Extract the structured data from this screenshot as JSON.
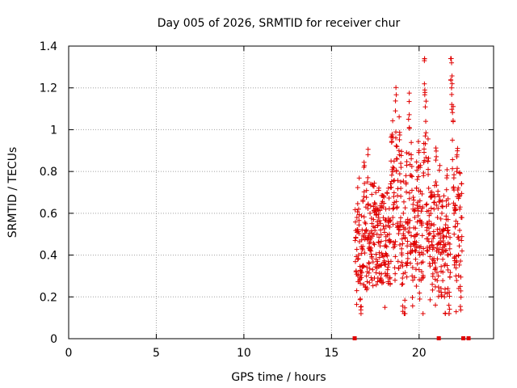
{
  "chart_data": {
    "type": "scatter",
    "title": "Day 005 of 2026, SRMTID for receiver chur",
    "xlabel": "GPS time / hours",
    "ylabel": "SRMTID / TECUs",
    "xlim": [
      0,
      24.25
    ],
    "ylim": [
      0,
      1.4
    ],
    "xticks": [
      0,
      5,
      10,
      15,
      20
    ],
    "yticks": [
      0,
      0.2,
      0.4,
      0.6,
      0.8,
      1,
      1.2,
      1.4
    ],
    "xtick_labels": [
      "0",
      "5",
      "10",
      "15",
      "20"
    ],
    "ytick_labels": [
      "0",
      "0.2",
      "0.4",
      "0.6",
      "0.8",
      "1",
      "1.2",
      "1.4"
    ],
    "grid": true,
    "marker": "+",
    "color": "#e00000",
    "data_range": [
      16.3,
      22.8
    ],
    "series": [
      {
        "name": "SRMTID",
        "points": [
          [
            16.35,
            0.47
          ],
          [
            16.4,
            0.32
          ],
          [
            16.45,
            0.58
          ],
          [
            16.5,
            0.38
          ],
          [
            16.55,
            0.62
          ],
          [
            16.6,
            0.28
          ],
          [
            16.65,
            0.19
          ],
          [
            16.7,
            0.44
          ],
          [
            16.75,
            0.52
          ],
          [
            16.8,
            0.35
          ],
          [
            16.85,
            0.68
          ],
          [
            16.9,
            0.41
          ],
          [
            16.95,
            0.55
          ],
          [
            17.0,
            0.3
          ],
          [
            17.05,
            0.75
          ],
          [
            17.1,
            0.48
          ],
          [
            17.15,
            0.36
          ],
          [
            17.2,
            0.6
          ],
          [
            17.25,
            0.42
          ],
          [
            17.3,
            0.69
          ],
          [
            17.35,
            0.33
          ],
          [
            17.4,
            0.57
          ],
          [
            17.45,
            0.45
          ],
          [
            17.5,
            0.62
          ],
          [
            17.55,
            0.38
          ],
          [
            17.6,
            0.5
          ],
          [
            17.65,
            0.29
          ],
          [
            17.7,
            0.46
          ],
          [
            17.75,
            0.35
          ],
          [
            17.8,
            0.52
          ],
          [
            17.85,
            0.31
          ],
          [
            17.9,
            0.4
          ],
          [
            17.95,
            0.27
          ],
          [
            18.0,
            0.36
          ],
          [
            18.05,
            0.15
          ],
          [
            18.1,
            0.62
          ],
          [
            18.15,
            0.44
          ],
          [
            18.2,
            0.33
          ],
          [
            18.25,
            0.72
          ],
          [
            18.3,
            0.5
          ],
          [
            18.35,
            0.26
          ],
          [
            18.4,
            0.85
          ],
          [
            18.45,
            0.97
          ],
          [
            18.5,
            0.58
          ],
          [
            18.55,
            0.68
          ],
          [
            18.6,
            0.45
          ],
          [
            18.65,
            1.09
          ],
          [
            18.7,
            0.8
          ],
          [
            18.75,
            0.63
          ],
          [
            18.8,
            0.37
          ],
          [
            18.85,
            0.9
          ],
          [
            18.9,
            0.52
          ],
          [
            18.95,
            0.75
          ],
          [
            19.0,
            0.43
          ],
          [
            19.05,
            0.29
          ],
          [
            19.1,
            0.6
          ],
          [
            19.15,
            0.12
          ],
          [
            19.2,
            0.48
          ],
          [
            19.25,
            0.78
          ],
          [
            19.3,
            0.35
          ],
          [
            19.35,
            0.55
          ],
          [
            19.4,
            1.05
          ],
          [
            19.45,
            0.67
          ],
          [
            19.5,
            0.41
          ],
          [
            19.55,
            0.88
          ],
          [
            19.6,
            0.3
          ],
          [
            19.65,
            0.62
          ],
          [
            19.7,
            0.45
          ],
          [
            19.75,
            0.58
          ],
          [
            19.8,
            0.38
          ],
          [
            19.85,
            0.72
          ],
          [
            19.9,
            0.5
          ],
          [
            19.95,
            0.82
          ],
          [
            20.0,
            0.33
          ],
          [
            20.05,
            0.66
          ],
          [
            20.1,
            0.44
          ],
          [
            20.15,
            0.55
          ],
          [
            20.2,
            0.29
          ],
          [
            20.25,
            0.78
          ],
          [
            20.3,
            1.33
          ],
          [
            20.35,
            0.97
          ],
          [
            20.4,
            0.64
          ],
          [
            20.45,
            0.42
          ],
          [
            20.5,
            0.85
          ],
          [
            20.55,
            0.5
          ],
          [
            20.6,
            0.36
          ],
          [
            20.65,
            0.7
          ],
          [
            20.7,
            0.55
          ],
          [
            20.75,
            0.26
          ],
          [
            20.8,
            0.48
          ],
          [
            20.85,
            0.62
          ],
          [
            20.9,
            0.33
          ],
          [
            20.95,
            0.75
          ],
          [
            21.0,
            0.42
          ],
          [
            21.05,
            0.58
          ],
          [
            21.1,
            0.3
          ],
          [
            21.15,
            0.68
          ],
          [
            21.2,
            0.5
          ],
          [
            21.25,
            0.24
          ],
          [
            21.3,
            0.6
          ],
          [
            21.35,
            0.38
          ],
          [
            21.4,
            0.52
          ],
          [
            21.45,
            0.2
          ],
          [
            21.5,
            0.45
          ],
          [
            21.55,
            0.66
          ],
          [
            21.6,
            0.35
          ],
          [
            21.65,
            0.57
          ],
          [
            21.7,
            0.16
          ],
          [
            21.75,
            0.43
          ],
          [
            21.8,
            1.34
          ],
          [
            21.85,
            1.2
          ],
          [
            21.9,
            0.95
          ],
          [
            21.95,
            0.72
          ],
          [
            22.0,
            0.5
          ],
          [
            22.05,
            0.62
          ],
          [
            22.1,
            0.3
          ],
          [
            22.15,
            0.8
          ],
          [
            22.2,
            0.55
          ],
          [
            22.25,
            0.4
          ],
          [
            22.3,
            0.68
          ],
          [
            22.35,
            0.25
          ],
          [
            22.4,
            0.58
          ],
          [
            22.45,
            0.42
          ]
        ]
      }
    ],
    "zero_markers_x": [
      16.3,
      21.1,
      22.5,
      22.8
    ]
  }
}
